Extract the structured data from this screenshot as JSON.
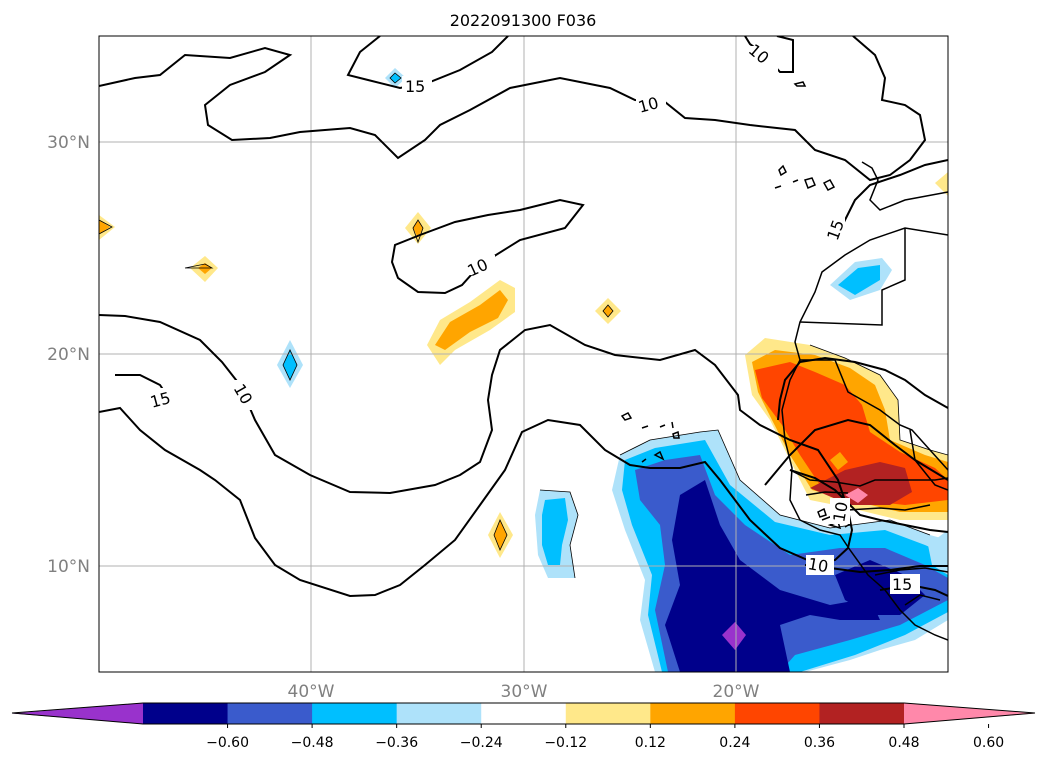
{
  "map": {
    "title": "2022091300 F036",
    "lat_labels": [
      "30°N",
      "20°N",
      "10°N"
    ],
    "lon_labels": [
      "40°W",
      "30°W",
      "20°W"
    ],
    "extent": {
      "lon": [
        -50,
        -10
      ],
      "lat": [
        5,
        35
      ]
    },
    "gridlines": true,
    "contour_labels": [
      "15",
      "10",
      "10",
      "10",
      "15",
      "10",
      "15",
      "10",
      "10",
      "15",
      "10"
    ]
  },
  "colorbar": {
    "ticks": [
      "−0.60",
      "−0.48",
      "−0.36",
      "−0.24",
      "−0.12",
      "0.12",
      "0.24",
      "0.36",
      "0.48",
      "0.60"
    ],
    "colors": [
      "#9932cc",
      "#00008b",
      "#3a5bcc",
      "#00bfff",
      "#aee2fa",
      "#ffffff",
      "#ffe88a",
      "#ffa500",
      "#ff4500",
      "#b22222",
      "#ff88aa"
    ],
    "extend": "both"
  }
}
